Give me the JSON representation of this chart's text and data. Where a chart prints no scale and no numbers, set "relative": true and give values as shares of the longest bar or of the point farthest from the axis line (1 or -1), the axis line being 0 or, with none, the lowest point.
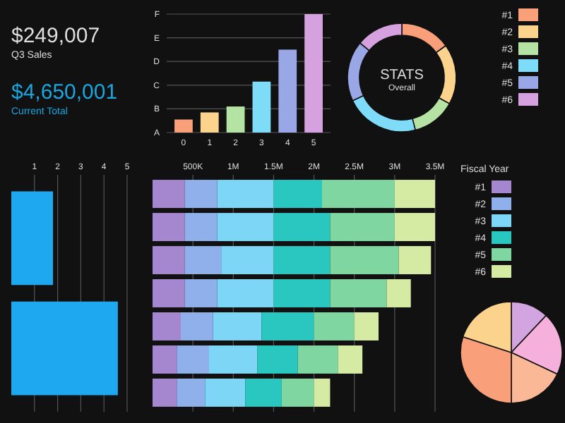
{
  "chart_data": [
    {
      "type": "other",
      "annotations": [
        "$249,007",
        "Q3 Sales",
        "$4,650,001",
        "Current Total"
      ]
    },
    {
      "type": "bar",
      "categories": [
        "0",
        "1",
        "2",
        "3",
        "4",
        "5"
      ],
      "values": [
        0.11,
        0.17,
        0.22,
        0.43,
        0.7,
        1
      ],
      "colors": [
        "#f9a07a",
        "#fbd38d",
        "#b5e3a3",
        "#7fdcf9",
        "#9aa7e6",
        "#d6a1df"
      ],
      "relative": true,
      "annotations": [
        "A",
        "B",
        "C",
        "D",
        "E",
        "F"
      ],
      "grid": "y"
    },
    {
      "type": "donut",
      "title": "STATS",
      "subtitle": "Overall",
      "categories": [
        "#1",
        "#2",
        "#3",
        "#4",
        "#5",
        "#6"
      ],
      "values": [
        15,
        18,
        13,
        22,
        18,
        14
      ],
      "colors": [
        "#f9a07a",
        "#fbd38d",
        "#b5e3a3",
        "#7fdcf9",
        "#9aa7e6",
        "#d6a1df"
      ],
      "legend": "right"
    },
    {
      "type": "pie",
      "categories": [
        null,
        null,
        null,
        null,
        null
      ],
      "values": [
        12,
        20,
        18,
        30,
        20
      ],
      "colors": [
        "#d2a4e0",
        "#f5b0dc",
        "#fbb896",
        "#f9a07a",
        "#fbd38d"
      ]
    },
    {
      "type": "bar",
      "orientation": "horizontal",
      "stacked": true,
      "legend": "right",
      "legend_title": "Fiscal Year",
      "grid": "x",
      "categories": [
        null,
        null,
        null,
        null,
        null,
        null,
        null
      ],
      "xlim": [
        0,
        3500000
      ],
      "xticks": [
        {
          "value": 500000,
          "label": "500K"
        },
        {
          "value": 1000000,
          "label": "1M"
        },
        {
          "value": 1500000,
          "label": "1.5M"
        },
        {
          "value": 2000000,
          "label": "2M"
        },
        {
          "value": 2500000,
          "label": "2.5M"
        },
        {
          "value": 3000000,
          "label": "3M"
        },
        {
          "value": 3500000,
          "label": "3.5M"
        }
      ],
      "series": [
        {
          "name": "#1",
          "color": "#a587d0",
          "values": [
            400000,
            400000,
            400000,
            400000,
            350000,
            300000,
            300000
          ]
        },
        {
          "name": "#2",
          "color": "#8fb0ea",
          "values": [
            400000,
            400000,
            450000,
            400000,
            400000,
            400000,
            350000
          ]
        },
        {
          "name": "#3",
          "color": "#7dd6f5",
          "values": [
            700000,
            700000,
            650000,
            700000,
            600000,
            600000,
            500000
          ]
        },
        {
          "name": "#4",
          "color": "#2ac7c0",
          "values": [
            600000,
            700000,
            700000,
            700000,
            650000,
            500000,
            450000
          ]
        },
        {
          "name": "#5",
          "color": "#7fd6a0",
          "values": [
            900000,
            800000,
            850000,
            700000,
            500000,
            500000,
            400000
          ]
        },
        {
          "name": "#6",
          "color": "#d5eba4",
          "values": [
            500000,
            500000,
            400000,
            300000,
            300000,
            300000,
            200000
          ]
        }
      ]
    },
    {
      "type": "bar",
      "orientation": "horizontal",
      "grid": "x",
      "categories": [
        null,
        null
      ],
      "values": [
        1.8,
        4.6
      ],
      "color": "#1ea8f0",
      "xlim": [
        0,
        5
      ],
      "xticks": [
        1,
        2,
        3,
        4,
        5
      ]
    }
  ]
}
